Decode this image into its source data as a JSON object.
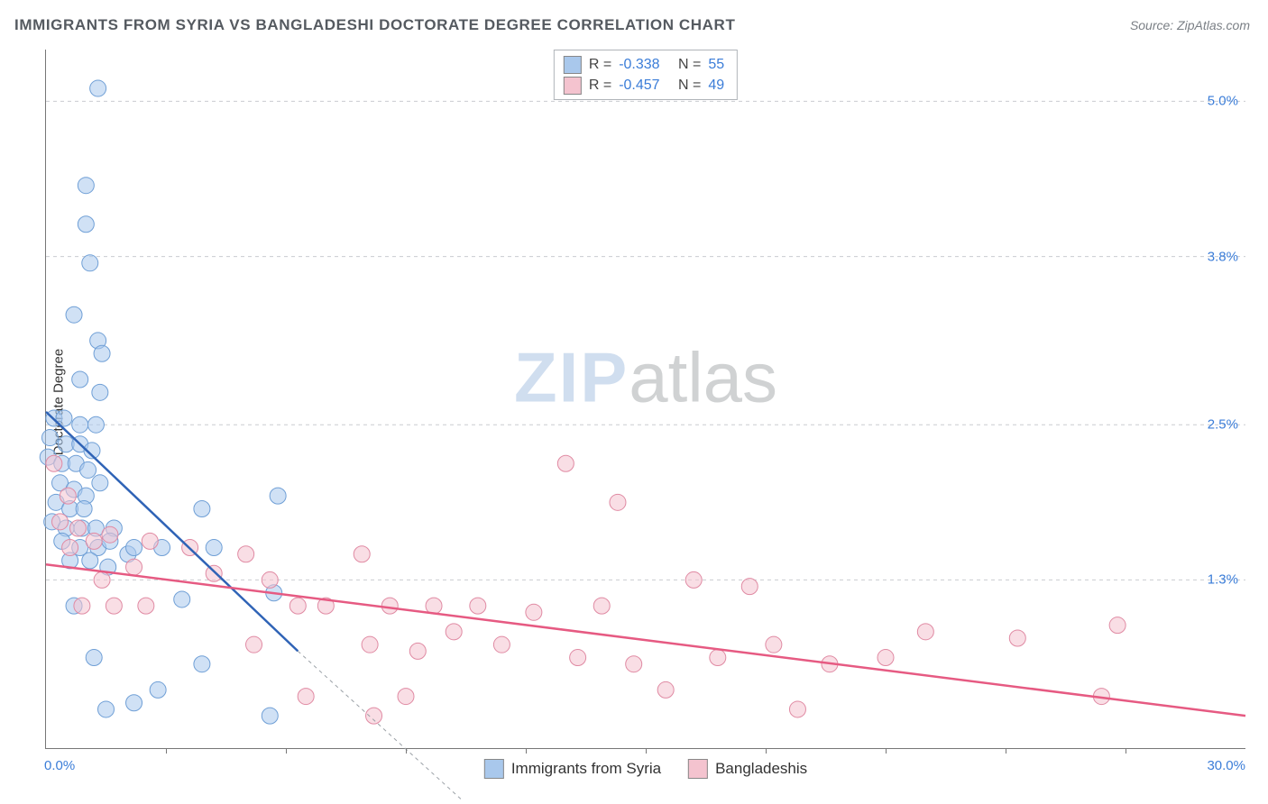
{
  "title": "IMMIGRANTS FROM SYRIA VS BANGLADESHI DOCTORATE DEGREE CORRELATION CHART",
  "source": "Source: ZipAtlas.com",
  "ylabel": "Doctorate Degree",
  "watermark": {
    "zip": "ZIP",
    "atlas": "atlas"
  },
  "chart": {
    "type": "scatter",
    "background_color": "#ffffff",
    "grid_color": "#c9ccd0",
    "axis_color": "#777777",
    "label_color": "#3b7dd8",
    "title_fontsize": 17,
    "label_fontsize": 15,
    "marker_radius": 9,
    "marker_opacity": 0.55,
    "line_width": 2.5,
    "xlim": [
      0.0,
      30.0
    ],
    "ylim": [
      0.0,
      5.4
    ],
    "yticks": [
      {
        "value": 1.3,
        "label": "1.3%"
      },
      {
        "value": 2.5,
        "label": "2.5%"
      },
      {
        "value": 3.8,
        "label": "3.8%"
      },
      {
        "value": 5.0,
        "label": "5.0%"
      }
    ],
    "xticks_minor": [
      3.0,
      6.0,
      9.0,
      12.0,
      15.0,
      18.0,
      21.0,
      24.0,
      27.0
    ],
    "xlabel_min": "0.0%",
    "xlabel_max": "30.0%",
    "series": [
      {
        "name": "Immigrants from Syria",
        "color_fill": "#a9c8ec",
        "color_stroke": "#6f9fd6",
        "r_label": "R =",
        "r_value": "-0.338",
        "n_label": "N =",
        "n_value": "55",
        "trend": {
          "x1": 0.0,
          "y1": 2.6,
          "x2": 6.3,
          "y2": 0.75,
          "x2_ext": 10.4,
          "y2_ext": -0.4,
          "color": "#2f63b6"
        },
        "points": [
          [
            1.3,
            5.1
          ],
          [
            1.0,
            4.35
          ],
          [
            1.0,
            4.05
          ],
          [
            1.1,
            3.75
          ],
          [
            0.7,
            3.35
          ],
          [
            1.3,
            3.15
          ],
          [
            1.4,
            3.05
          ],
          [
            0.85,
            2.85
          ],
          [
            1.35,
            2.75
          ],
          [
            0.2,
            2.55
          ],
          [
            0.45,
            2.55
          ],
          [
            0.85,
            2.5
          ],
          [
            1.25,
            2.5
          ],
          [
            0.1,
            2.4
          ],
          [
            0.5,
            2.35
          ],
          [
            0.85,
            2.35
          ],
          [
            1.15,
            2.3
          ],
          [
            0.05,
            2.25
          ],
          [
            0.4,
            2.2
          ],
          [
            0.75,
            2.2
          ],
          [
            1.05,
            2.15
          ],
          [
            0.35,
            2.05
          ],
          [
            0.7,
            2.0
          ],
          [
            1.0,
            1.95
          ],
          [
            1.35,
            2.05
          ],
          [
            0.25,
            1.9
          ],
          [
            0.6,
            1.85
          ],
          [
            0.95,
            1.85
          ],
          [
            0.15,
            1.75
          ],
          [
            0.5,
            1.7
          ],
          [
            0.9,
            1.7
          ],
          [
            1.25,
            1.7
          ],
          [
            1.7,
            1.7
          ],
          [
            0.4,
            1.6
          ],
          [
            0.85,
            1.55
          ],
          [
            1.3,
            1.55
          ],
          [
            0.6,
            1.45
          ],
          [
            1.1,
            1.45
          ],
          [
            1.55,
            1.4
          ],
          [
            2.05,
            1.5
          ],
          [
            1.6,
            1.6
          ],
          [
            2.2,
            1.55
          ],
          [
            2.9,
            1.55
          ],
          [
            5.8,
            1.95
          ],
          [
            3.9,
            1.85
          ],
          [
            4.2,
            1.55
          ],
          [
            3.4,
            1.15
          ],
          [
            5.7,
            1.2
          ],
          [
            1.2,
            0.7
          ],
          [
            2.8,
            0.45
          ],
          [
            3.9,
            0.65
          ],
          [
            1.5,
            0.3
          ],
          [
            2.2,
            0.35
          ],
          [
            5.6,
            0.25
          ],
          [
            0.7,
            1.1
          ]
        ]
      },
      {
        "name": "Bangladeshis",
        "color_fill": "#f4c3cf",
        "color_stroke": "#e08aa3",
        "r_label": "R =",
        "r_value": "-0.457",
        "n_label": "N =",
        "n_value": "49",
        "trend": {
          "x1": 0.0,
          "y1": 1.42,
          "x2": 30.0,
          "y2": 0.25,
          "color": "#e65a82"
        },
        "points": [
          [
            0.2,
            2.2
          ],
          [
            0.55,
            1.95
          ],
          [
            0.35,
            1.75
          ],
          [
            0.8,
            1.7
          ],
          [
            0.6,
            1.55
          ],
          [
            1.2,
            1.6
          ],
          [
            1.6,
            1.65
          ],
          [
            2.6,
            1.6
          ],
          [
            2.2,
            1.4
          ],
          [
            1.4,
            1.3
          ],
          [
            0.9,
            1.1
          ],
          [
            1.7,
            1.1
          ],
          [
            2.5,
            1.1
          ],
          [
            3.6,
            1.55
          ],
          [
            4.2,
            1.35
          ],
          [
            5.0,
            1.5
          ],
          [
            5.6,
            1.3
          ],
          [
            6.3,
            1.1
          ],
          [
            7.0,
            1.1
          ],
          [
            7.9,
            1.5
          ],
          [
            8.6,
            1.1
          ],
          [
            8.1,
            0.8
          ],
          [
            9.3,
            0.75
          ],
          [
            9.0,
            0.4
          ],
          [
            9.7,
            1.1
          ],
          [
            10.2,
            0.9
          ],
          [
            10.8,
            1.1
          ],
          [
            11.4,
            0.8
          ],
          [
            12.2,
            1.05
          ],
          [
            13.0,
            2.2
          ],
          [
            13.3,
            0.7
          ],
          [
            13.9,
            1.1
          ],
          [
            14.3,
            1.9
          ],
          [
            14.7,
            0.65
          ],
          [
            15.5,
            0.45
          ],
          [
            16.2,
            1.3
          ],
          [
            16.8,
            0.7
          ],
          [
            17.6,
            1.25
          ],
          [
            18.2,
            0.8
          ],
          [
            18.8,
            0.3
          ],
          [
            19.6,
            0.65
          ],
          [
            21.0,
            0.7
          ],
          [
            22.0,
            0.9
          ],
          [
            24.3,
            0.85
          ],
          [
            26.8,
            0.95
          ],
          [
            26.4,
            0.4
          ],
          [
            8.2,
            0.25
          ],
          [
            6.5,
            0.4
          ],
          [
            5.2,
            0.8
          ]
        ]
      }
    ],
    "legend_bottom": [
      {
        "label": "Immigrants from Syria",
        "fill": "#a9c8ec"
      },
      {
        "label": "Bangladeshis",
        "fill": "#f4c3cf"
      }
    ]
  }
}
